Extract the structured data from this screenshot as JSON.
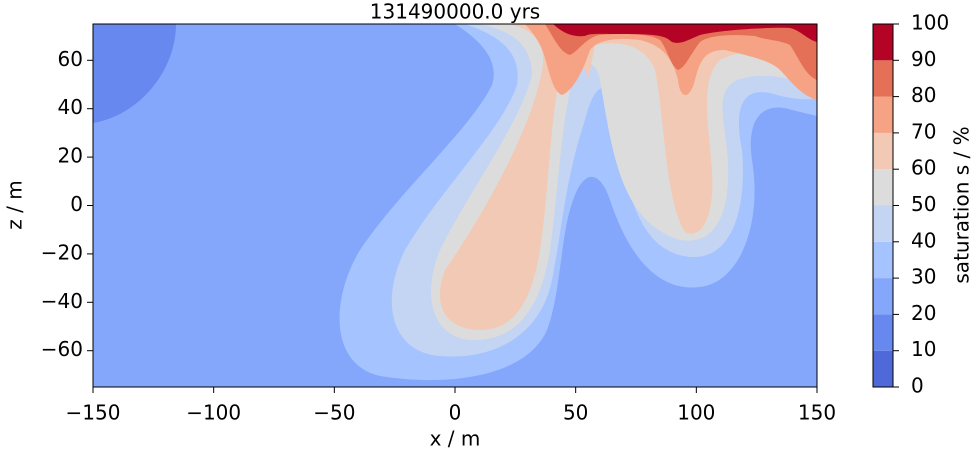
{
  "chart_data": {
    "type": "contourf",
    "title": "131490000.0 yrs",
    "xlabel": "x / m",
    "ylabel": "z / m",
    "colorbar_label": "saturation s / %",
    "xlim": [
      -150,
      150
    ],
    "ylim": [
      -75,
      75
    ],
    "xticks": [
      {
        "value": -150,
        "label": "−150"
      },
      {
        "value": -100,
        "label": "−100"
      },
      {
        "value": -50,
        "label": "−50"
      },
      0,
      50,
      100,
      150
    ],
    "yticks": [
      {
        "value": -60,
        "label": "−60"
      },
      {
        "value": -40,
        "label": "−40"
      },
      {
        "value": -20,
        "label": "−20"
      },
      0,
      20,
      40,
      60
    ],
    "levels": [
      0,
      10,
      20,
      30,
      40,
      50,
      60,
      70,
      80,
      90,
      100
    ],
    "colors": [
      "#4f69d9",
      "#6788ee",
      "#84a7fc",
      "#a5c3fe",
      "#c4d5f3",
      "#dddcdc",
      "#f2c9b4",
      "#f6a385",
      "#e57058",
      "#b40426"
    ]
  }
}
